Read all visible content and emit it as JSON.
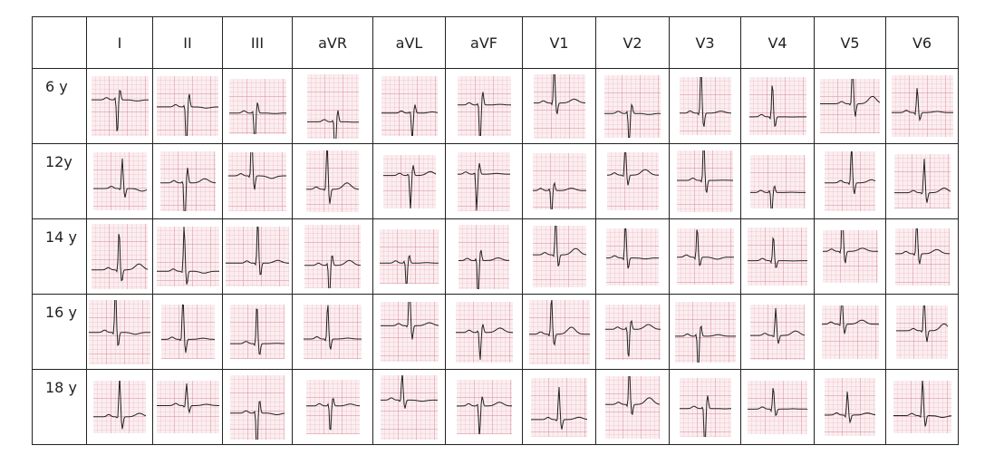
{
  "table": {
    "header": [
      "I",
      "II",
      "III",
      "aVR",
      "aVL",
      "aVF",
      "V1",
      "V2",
      "V3",
      "V4",
      "V5",
      "V6"
    ],
    "rows": [
      "6 y",
      "12y",
      "14 y",
      "16 y",
      "18 y"
    ]
  }
}
